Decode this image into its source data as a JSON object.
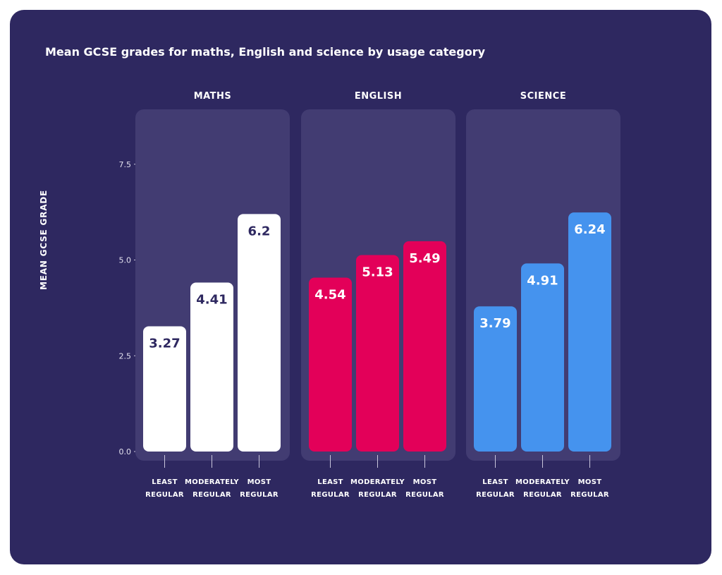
{
  "chart_data": {
    "type": "bar",
    "title": "Mean GCSE grades for maths, English and science by usage category",
    "ylabel": "MEAN GCSE GRADE",
    "ylim": [
      0,
      8.8
    ],
    "yticks": [
      {
        "value": 0,
        "label": "0.0"
      },
      {
        "value": 2.5,
        "label": "2.5"
      },
      {
        "value": 5,
        "label": "5.0"
      },
      {
        "value": 7.5,
        "label": "7.5"
      }
    ],
    "categories": [
      [
        "LEAST",
        "REGULAR"
      ],
      [
        "MODERATELY",
        "REGULAR"
      ],
      [
        "MOST",
        "REGULAR"
      ]
    ],
    "panels": [
      {
        "name": "MATHS",
        "color": "#ffffff",
        "label_color": "#2e2860",
        "values": [
          3.27,
          4.41,
          6.2
        ],
        "labels": [
          "3.27",
          "4.41",
          "6.2"
        ]
      },
      {
        "name": "ENGLISH",
        "color": "#e30059",
        "label_color": "#ffffff",
        "values": [
          4.54,
          5.13,
          5.49
        ],
        "labels": [
          "4.54",
          "5.13",
          "5.49"
        ]
      },
      {
        "name": "SCIENCE",
        "color": "#4593ee",
        "label_color": "#ffffff",
        "values": [
          3.79,
          4.91,
          6.24
        ],
        "labels": [
          "3.79",
          "4.91",
          "6.24"
        ]
      }
    ],
    "grid": false,
    "colors": {
      "background": "#2e2860",
      "panel": "#423c72",
      "axis": "#c9c6dc"
    }
  }
}
